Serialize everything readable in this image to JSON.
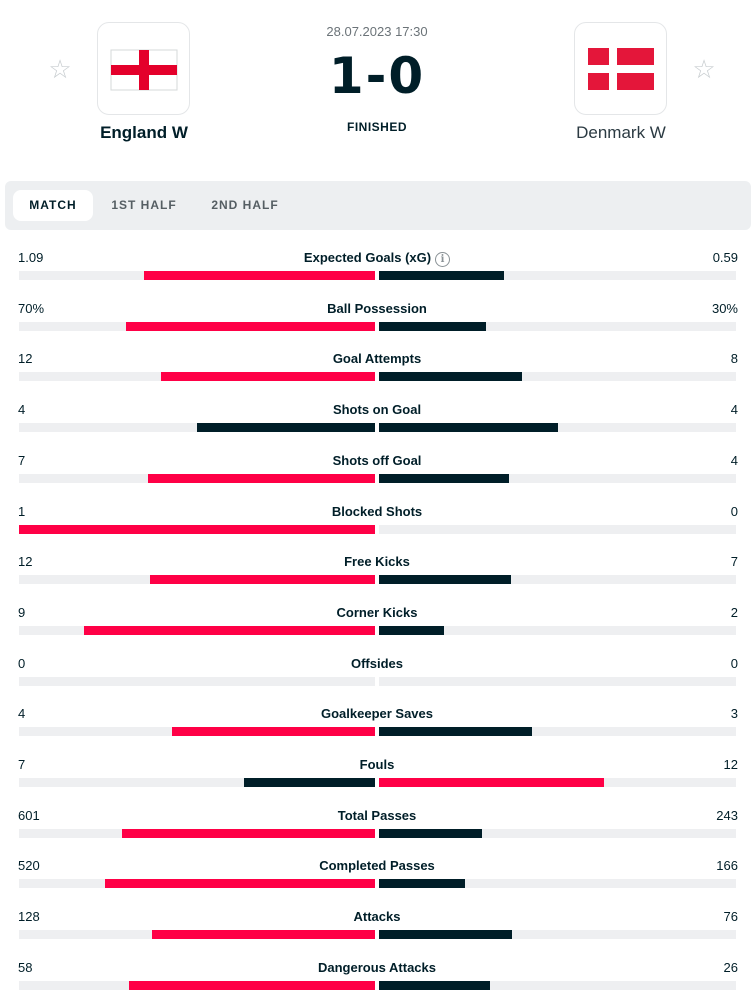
{
  "match": {
    "date": "28.07.2023 17:30",
    "score": "1-0",
    "status": "FINISHED",
    "home": {
      "name": "England W"
    },
    "away": {
      "name": "Denmark W"
    },
    "favorite_icon": "star-outline-icon"
  },
  "colors": {
    "home_bar_highlight": "#ff0046",
    "away_bar_highlight": "#ff0046",
    "bar_lower": "#001e28",
    "track": "#eeeff1"
  },
  "tabs": [
    {
      "label": "MATCH",
      "active": true
    },
    {
      "label": "1ST HALF",
      "active": false
    },
    {
      "label": "2ND HALF",
      "active": false
    }
  ],
  "stats": [
    {
      "label": "Expected Goals (xG)",
      "home": "1.09",
      "away": "0.59",
      "home_value": 1.09,
      "away_value": 0.59,
      "info": true
    },
    {
      "label": "Ball Possession",
      "home": "70%",
      "away": "30%",
      "home_value": 70,
      "away_value": 30
    },
    {
      "label": "Goal Attempts",
      "home": "12",
      "away": "8",
      "home_value": 12,
      "away_value": 8
    },
    {
      "label": "Shots on Goal",
      "home": "4",
      "away": "4",
      "home_value": 4,
      "away_value": 4
    },
    {
      "label": "Shots off Goal",
      "home": "7",
      "away": "4",
      "home_value": 7,
      "away_value": 4
    },
    {
      "label": "Blocked Shots",
      "home": "1",
      "away": "0",
      "home_value": 1,
      "away_value": 0
    },
    {
      "label": "Free Kicks",
      "home": "12",
      "away": "7",
      "home_value": 12,
      "away_value": 7
    },
    {
      "label": "Corner Kicks",
      "home": "9",
      "away": "2",
      "home_value": 9,
      "away_value": 2
    },
    {
      "label": "Offsides",
      "home": "0",
      "away": "0",
      "home_value": 0,
      "away_value": 0
    },
    {
      "label": "Goalkeeper Saves",
      "home": "4",
      "away": "3",
      "home_value": 4,
      "away_value": 3
    },
    {
      "label": "Fouls",
      "home": "7",
      "away": "12",
      "home_value": 7,
      "away_value": 12
    },
    {
      "label": "Total Passes",
      "home": "601",
      "away": "243",
      "home_value": 601,
      "away_value": 243
    },
    {
      "label": "Completed Passes",
      "home": "520",
      "away": "166",
      "home_value": 520,
      "away_value": 166
    },
    {
      "label": "Attacks",
      "home": "128",
      "away": "76",
      "home_value": 128,
      "away_value": 76
    },
    {
      "label": "Dangerous Attacks",
      "home": "58",
      "away": "26",
      "home_value": 58,
      "away_value": 26
    }
  ]
}
